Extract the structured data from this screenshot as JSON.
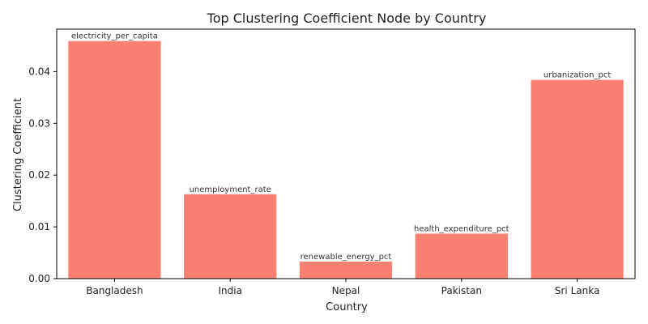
{
  "chart_data": {
    "type": "bar",
    "title": "Top Clustering Coefficient Node by Country",
    "xlabel": "Country",
    "ylabel": "Clustering Coefficient",
    "categories": [
      "Bangladesh",
      "India",
      "Nepal",
      "Pakistan",
      "Sri Lanka"
    ],
    "values": [
      0.0459,
      0.0163,
      0.0033,
      0.0087,
      0.0384
    ],
    "bar_labels": [
      "electricity_per_capita",
      "unemployment_rate",
      "renewable_energy_pct",
      "health_expenditure_pct",
      "urbanization_pct"
    ],
    "ylim": [
      0,
      0.0482
    ],
    "yticks": [
      0.0,
      0.01,
      0.02,
      0.03,
      0.04
    ],
    "ytick_labels": [
      "0.00",
      "0.01",
      "0.02",
      "0.03",
      "0.04"
    ],
    "grid": false,
    "legend": "none",
    "bar_color": "#fa8072"
  }
}
